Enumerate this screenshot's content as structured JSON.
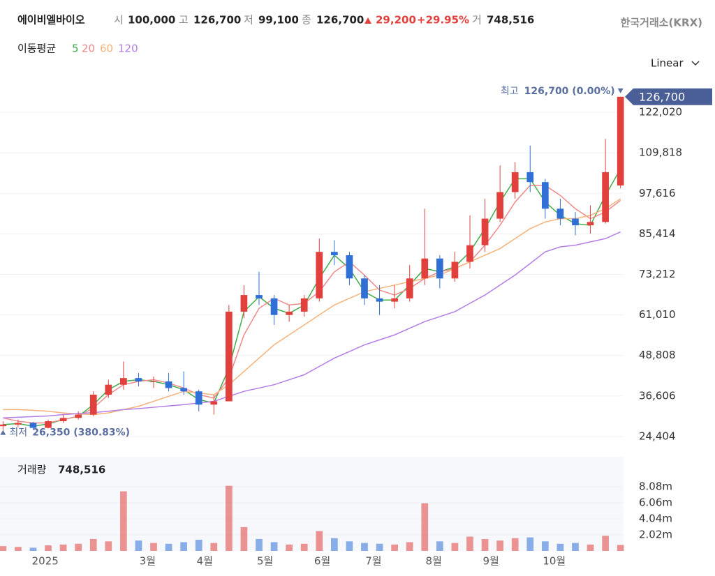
{
  "header": {
    "name": "에이비엘바이오",
    "open_label": "시",
    "open": "100,000",
    "high_label": "고",
    "high": "126,700",
    "low_label": "저",
    "low": "99,100",
    "close_label": "종",
    "close": "126,700",
    "change": "29,200",
    "change_pct": "+29.95%",
    "volume_label": "거",
    "volume": "748,516",
    "exchange": "한국거래소(KRX)",
    "ma_label": "이동평균",
    "scale_mode": "Linear"
  },
  "chart_data": [
    {
      "type": "candlestick",
      "up_color": "#e2403c",
      "down_color": "#2f6fd6",
      "grid": true,
      "max_label": "최고",
      "max_text": "126,700 (0.00%)",
      "min_label": "최저",
      "min_text": "26,350 (380.83%)",
      "x": [
        0,
        5,
        10,
        15,
        20,
        25,
        30,
        35,
        40,
        45,
        50,
        55,
        60,
        65,
        70,
        75,
        80,
        85,
        90,
        95,
        100,
        105,
        110,
        115,
        120,
        125,
        130,
        135,
        140,
        145,
        150,
        155,
        160,
        165,
        170,
        175,
        180,
        185,
        190,
        195,
        200,
        205
      ],
      "open": [
        27500,
        28000,
        28500,
        27000,
        29000,
        30000,
        31000,
        37000,
        40000,
        42000,
        41000,
        41000,
        39000,
        38000,
        34000,
        35000,
        62000,
        67000,
        66000,
        61000,
        62000,
        66000,
        80000,
        79000,
        72000,
        66000,
        65000,
        66000,
        72000,
        78000,
        72000,
        77000,
        82000,
        90000,
        98000,
        104000,
        101000,
        93000,
        90000,
        88000,
        89000,
        100000
      ],
      "high": [
        29000,
        29500,
        28800,
        29500,
        31000,
        32000,
        38000,
        41500,
        47000,
        43500,
        42500,
        43500,
        44000,
        38500,
        37000,
        64000,
        70000,
        74000,
        67000,
        64000,
        67000,
        84000,
        83500,
        80000,
        73000,
        70000,
        70000,
        76000,
        93000,
        79000,
        80000,
        91000,
        96000,
        106000,
        107000,
        112000,
        102000,
        96000,
        92000,
        94000,
        114000,
        126700
      ],
      "low": [
        26350,
        27200,
        26500,
        26800,
        28500,
        29500,
        30500,
        36000,
        38500,
        39500,
        39000,
        38000,
        37000,
        32000,
        31000,
        35000,
        60000,
        64000,
        58000,
        59000,
        60500,
        65000,
        76000,
        70000,
        64000,
        61000,
        63000,
        65000,
        70000,
        69000,
        71000,
        75000,
        80000,
        89000,
        96000,
        98000,
        90000,
        88000,
        85000,
        85500,
        88500,
        99100
      ],
      "close": [
        28000,
        28500,
        27000,
        29000,
        30000,
        31000,
        37000,
        40000,
        42000,
        41000,
        41000,
        39000,
        38000,
        34000,
        35000,
        62000,
        67000,
        66000,
        61000,
        62000,
        66000,
        80000,
        79000,
        72000,
        66000,
        65000,
        66000,
        72000,
        78000,
        72000,
        77000,
        82000,
        90000,
        98000,
        104000,
        101000,
        93000,
        90000,
        88000,
        89000,
        104000,
        126700
      ],
      "series": [
        {
          "name": "5",
          "color": "#3fae49",
          "values": [
            28000,
            28300,
            27500,
            28200,
            29500,
            30500,
            34000,
            38500,
            41000,
            41500,
            41000,
            40000,
            38500,
            35500,
            34500,
            45000,
            62000,
            66500,
            63000,
            61500,
            64000,
            72000,
            79000,
            75000,
            68000,
            65500,
            65500,
            70000,
            75000,
            74000,
            75500,
            80000,
            87000,
            95000,
            102000,
            102000,
            95000,
            91000,
            88500,
            88000,
            97000,
            105000
          ]
        },
        {
          "name": "20",
          "color": "#f08a8a",
          "values": [
            30000,
            29000,
            28500,
            28500,
            29500,
            30500,
            33000,
            37000,
            40000,
            41000,
            41500,
            40500,
            39000,
            37000,
            36000,
            42000,
            55000,
            63000,
            66000,
            64000,
            64500,
            68000,
            74000,
            77000,
            73000,
            68500,
            67000,
            69000,
            72000,
            74000,
            75000,
            77000,
            82000,
            88000,
            95000,
            100000,
            100000,
            97000,
            93000,
            90000,
            92000,
            95500
          ]
        },
        {
          "name": "60",
          "color": "#f5b37a",
          "values": [
            32500,
            32500,
            32300,
            32000,
            31500,
            31200,
            31000,
            31500,
            32500,
            33500,
            35000,
            36500,
            38000,
            37500,
            37000,
            40000,
            44000,
            48000,
            52000,
            55000,
            58000,
            61000,
            64000,
            66000,
            68000,
            69000,
            70000,
            71000,
            72000,
            73000,
            75000,
            77000,
            79000,
            81000,
            84000,
            87000,
            89000,
            90000,
            90000,
            91000,
            93000,
            96000
          ]
        },
        {
          "name": "120",
          "color": "#b57de8",
          "values": [
            30000,
            30200,
            30400,
            30600,
            31000,
            31300,
            31600,
            32000,
            32500,
            32800,
            33200,
            33600,
            34000,
            34500,
            35000,
            36500,
            38000,
            39000,
            40000,
            41500,
            43000,
            45500,
            48000,
            50000,
            52000,
            53500,
            55000,
            57000,
            59000,
            60500,
            62000,
            64500,
            67000,
            70000,
            73000,
            76500,
            80000,
            81500,
            82000,
            83000,
            84000,
            86000
          ]
        }
      ],
      "xlim": [
        -1,
        206
      ],
      "ylim": [
        19355,
        128542
      ],
      "yticks": [
        {
          "value": 24404,
          "label": "24,404"
        },
        {
          "value": 36606,
          "label": "36,606"
        },
        {
          "value": 48808,
          "label": "48,808"
        },
        {
          "value": 61010,
          "label": "61,010"
        },
        {
          "value": 73212,
          "label": "73,212"
        },
        {
          "value": 85414,
          "label": "85,414"
        },
        {
          "value": 97616,
          "label": "97,616"
        },
        {
          "value": 109818,
          "label": "109,818"
        },
        {
          "value": 122020,
          "label": "122,020"
        }
      ]
    },
    {
      "type": "bar",
      "title": "거래량",
      "last_value_label": "748,516",
      "values": [
        600000,
        500000,
        400000,
        700000,
        800000,
        900000,
        1500000,
        1200000,
        7500000,
        1300000,
        1000000,
        900000,
        1100000,
        1400000,
        1000000,
        8200000,
        3000000,
        1500000,
        1100000,
        800000,
        900000,
        2500000,
        1600000,
        1200000,
        1000000,
        900000,
        800000,
        1100000,
        6000000,
        1200000,
        1000000,
        1800000,
        1500000,
        1300000,
        1600000,
        1700000,
        1200000,
        900000,
        1000000,
        800000,
        1900000,
        748516
      ],
      "xlim": [
        -1,
        206
      ],
      "ylim": [
        0,
        11856000
      ],
      "yticks": [
        {
          "value": 2020000,
          "label": "2.02m"
        },
        {
          "value": 4040000,
          "label": "4.04m"
        },
        {
          "value": 6060000,
          "label": "6.06m"
        },
        {
          "value": 8080000,
          "label": "8.08m"
        }
      ],
      "xticks": [
        {
          "value": 14,
          "label": "2025"
        },
        {
          "value": 48,
          "label": "3월"
        },
        {
          "value": 67,
          "label": "4월"
        },
        {
          "value": 87,
          "label": "5월"
        },
        {
          "value": 106,
          "label": "6월"
        },
        {
          "value": 123,
          "label": "7월"
        },
        {
          "value": 143,
          "label": "8월"
        },
        {
          "value": 162,
          "label": "9월"
        },
        {
          "value": 183,
          "label": "10월"
        }
      ]
    }
  ]
}
